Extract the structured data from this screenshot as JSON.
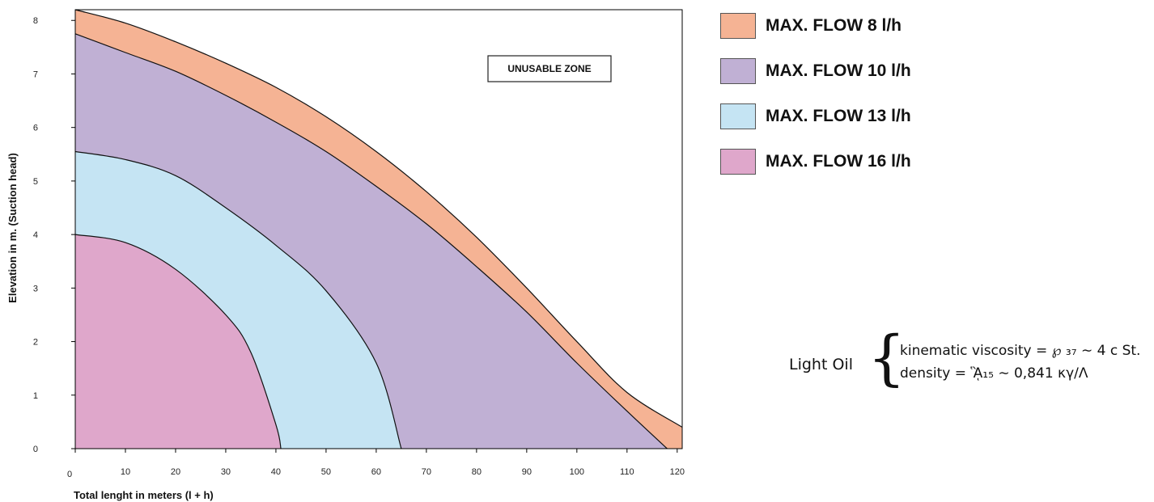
{
  "chart_data": {
    "type": "area",
    "xlabel": "Total lenght in meters (l + h)",
    "ylabel": "Elevation in m. (Suction head)",
    "xlim": [
      0,
      121
    ],
    "ylim": [
      0,
      8.2
    ],
    "x_ticks": [
      "0",
      "10",
      "20",
      "30",
      "40",
      "50",
      "60",
      "70",
      "80",
      "90",
      "100",
      "110",
      "120"
    ],
    "y_ticks": [
      "0",
      "1",
      "2",
      "3",
      "4",
      "5",
      "6",
      "7",
      "8"
    ],
    "annotation": "UNUSABLE ZONE",
    "series": [
      {
        "name": "MAX. FLOW 8 l/h",
        "color": "#f5b394",
        "points": [
          [
            0,
            8.2
          ],
          [
            10,
            7.95
          ],
          [
            20,
            7.6
          ],
          [
            30,
            7.2
          ],
          [
            40,
            6.75
          ],
          [
            50,
            6.2
          ],
          [
            60,
            5.55
          ],
          [
            70,
            4.8
          ],
          [
            80,
            3.95
          ],
          [
            90,
            3.0
          ],
          [
            100,
            2.0
          ],
          [
            110,
            1.05
          ],
          [
            121,
            0.4
          ]
        ]
      },
      {
        "name": "MAX. FLOW 10 l/h",
        "color": "#c0b0d4",
        "points": [
          [
            0,
            7.75
          ],
          [
            10,
            7.4
          ],
          [
            20,
            7.05
          ],
          [
            30,
            6.6
          ],
          [
            40,
            6.1
          ],
          [
            50,
            5.55
          ],
          [
            60,
            4.9
          ],
          [
            70,
            4.2
          ],
          [
            80,
            3.4
          ],
          [
            90,
            2.55
          ],
          [
            100,
            1.6
          ],
          [
            110,
            0.7
          ],
          [
            118,
            0
          ]
        ]
      },
      {
        "name": "MAX. FLOW 13 l/h",
        "color": "#c5e4f3",
        "points": [
          [
            0,
            5.55
          ],
          [
            10,
            5.4
          ],
          [
            20,
            5.1
          ],
          [
            30,
            4.5
          ],
          [
            40,
            3.8
          ],
          [
            50,
            2.95
          ],
          [
            60,
            1.6
          ],
          [
            65,
            0
          ]
        ]
      },
      {
        "name": "MAX. FLOW 16 l/h",
        "color": "#dfa7cb",
        "points": [
          [
            0,
            4.0
          ],
          [
            10,
            3.85
          ],
          [
            20,
            3.35
          ],
          [
            30,
            2.5
          ],
          [
            35,
            1.8
          ],
          [
            40,
            0.45
          ],
          [
            41,
            0
          ]
        ]
      }
    ]
  },
  "fluid": {
    "name": "Light Oil",
    "brace": "{",
    "viscosity": "kinematic viscosity = ℘ ₃₇ ∼ 4 c St.",
    "density": "density = ᾋ₁₅ ∼ 0,841 κγ/Λ"
  }
}
